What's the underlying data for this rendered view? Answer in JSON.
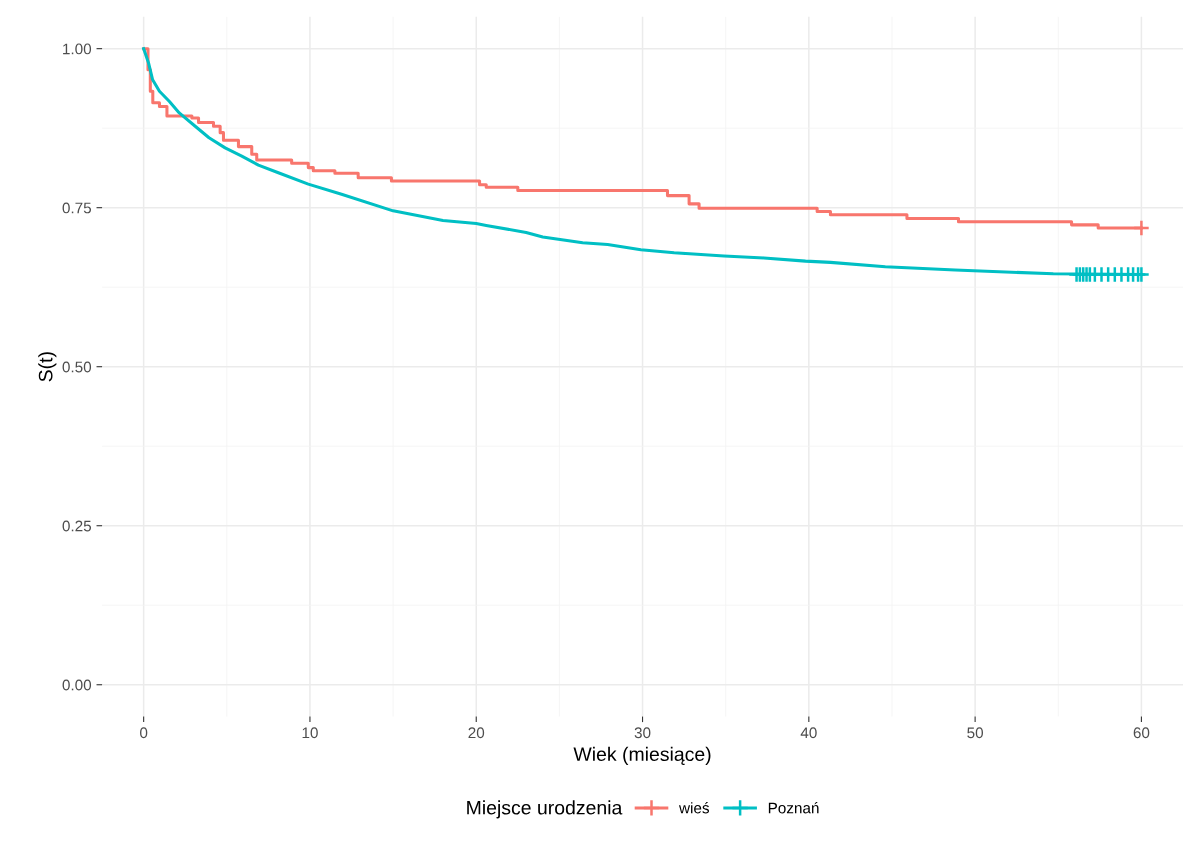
{
  "chart_data": {
    "type": "step",
    "xlabel": "Wiek (miesiące)",
    "ylabel": "S(t)",
    "legend_title": "Miejsce urodzenia",
    "legend": "bottom",
    "grid": true,
    "xlim": [
      -2.5,
      62.5
    ],
    "xticks": [
      0,
      10,
      20,
      30,
      40,
      50,
      60
    ],
    "ylim": [
      -0.05,
      1.05
    ],
    "yticks": [
      {
        "value": 0,
        "label": "0.00"
      },
      {
        "value": 0.25,
        "label": "0.25"
      },
      {
        "value": 0.5,
        "label": "0.50"
      },
      {
        "value": 0.75,
        "label": "0.75"
      },
      {
        "value": 1,
        "label": "1.00"
      }
    ],
    "series": [
      {
        "name": "wieś",
        "color": "#f8766d",
        "x": [
          0,
          0.26,
          0.4,
          0.55,
          0.95,
          1.4,
          2.9,
          3.3,
          4.2,
          4.6,
          4.8,
          5.7,
          6.5,
          6.8,
          8.9,
          9.9,
          10.2,
          11.5,
          12.9,
          14.9,
          20.2,
          20.6,
          22.5,
          31.5,
          32.8,
          33.4,
          40.5,
          41.3,
          45.9,
          49.0,
          55.8,
          57.4,
          60
        ],
        "values": [
          1.0,
          0.967,
          0.933,
          0.915,
          0.909,
          0.894,
          0.891,
          0.884,
          0.878,
          0.868,
          0.856,
          0.846,
          0.834,
          0.825,
          0.82,
          0.813,
          0.808,
          0.804,
          0.797,
          0.792,
          0.786,
          0.782,
          0.777,
          0.769,
          0.756,
          0.749,
          0.744,
          0.739,
          0.733,
          0.728,
          0.723,
          0.718,
          0.718
        ]
      },
      {
        "name": "Poznań",
        "type": "line",
        "color": "#00bfc4",
        "x": [
          0,
          0.3,
          0.54,
          0.95,
          1.55,
          2.14,
          3.1,
          3.93,
          4.9,
          5.9,
          6.9,
          8.1,
          9.9,
          11.9,
          15.0,
          18.0,
          20.0,
          20.6,
          23.0,
          24.0,
          26.4,
          27.9,
          29.9,
          31.9,
          34.9,
          37.3,
          39.8,
          41.3,
          44.6,
          48.8,
          54.7,
          60
        ],
        "values": [
          1.0,
          0.977,
          0.951,
          0.933,
          0.917,
          0.899,
          0.878,
          0.86,
          0.844,
          0.831,
          0.817,
          0.805,
          0.787,
          0.771,
          0.745,
          0.73,
          0.725,
          0.722,
          0.711,
          0.704,
          0.695,
          0.692,
          0.684,
          0.679,
          0.674,
          0.671,
          0.666,
          0.664,
          0.657,
          0.652,
          0.646,
          0.645
        ]
      },
      {
        "type": "scatter",
        "marker": "cross",
        "color": "#f8766d",
        "x": [
          60
        ],
        "values": [
          0.718
        ]
      },
      {
        "type": "scatter",
        "marker": "cross",
        "color": "#00bfc4",
        "x": [
          56.1,
          56.3,
          56.5,
          56.7,
          56.9,
          57.2,
          57.6,
          58.0,
          58.4,
          58.8,
          59.2,
          59.5,
          59.8,
          60
        ],
        "values": [
          0.645,
          0.645,
          0.645,
          0.645,
          0.645,
          0.645,
          0.645,
          0.645,
          0.645,
          0.645,
          0.645,
          0.645,
          0.645,
          0.645
        ]
      }
    ]
  }
}
